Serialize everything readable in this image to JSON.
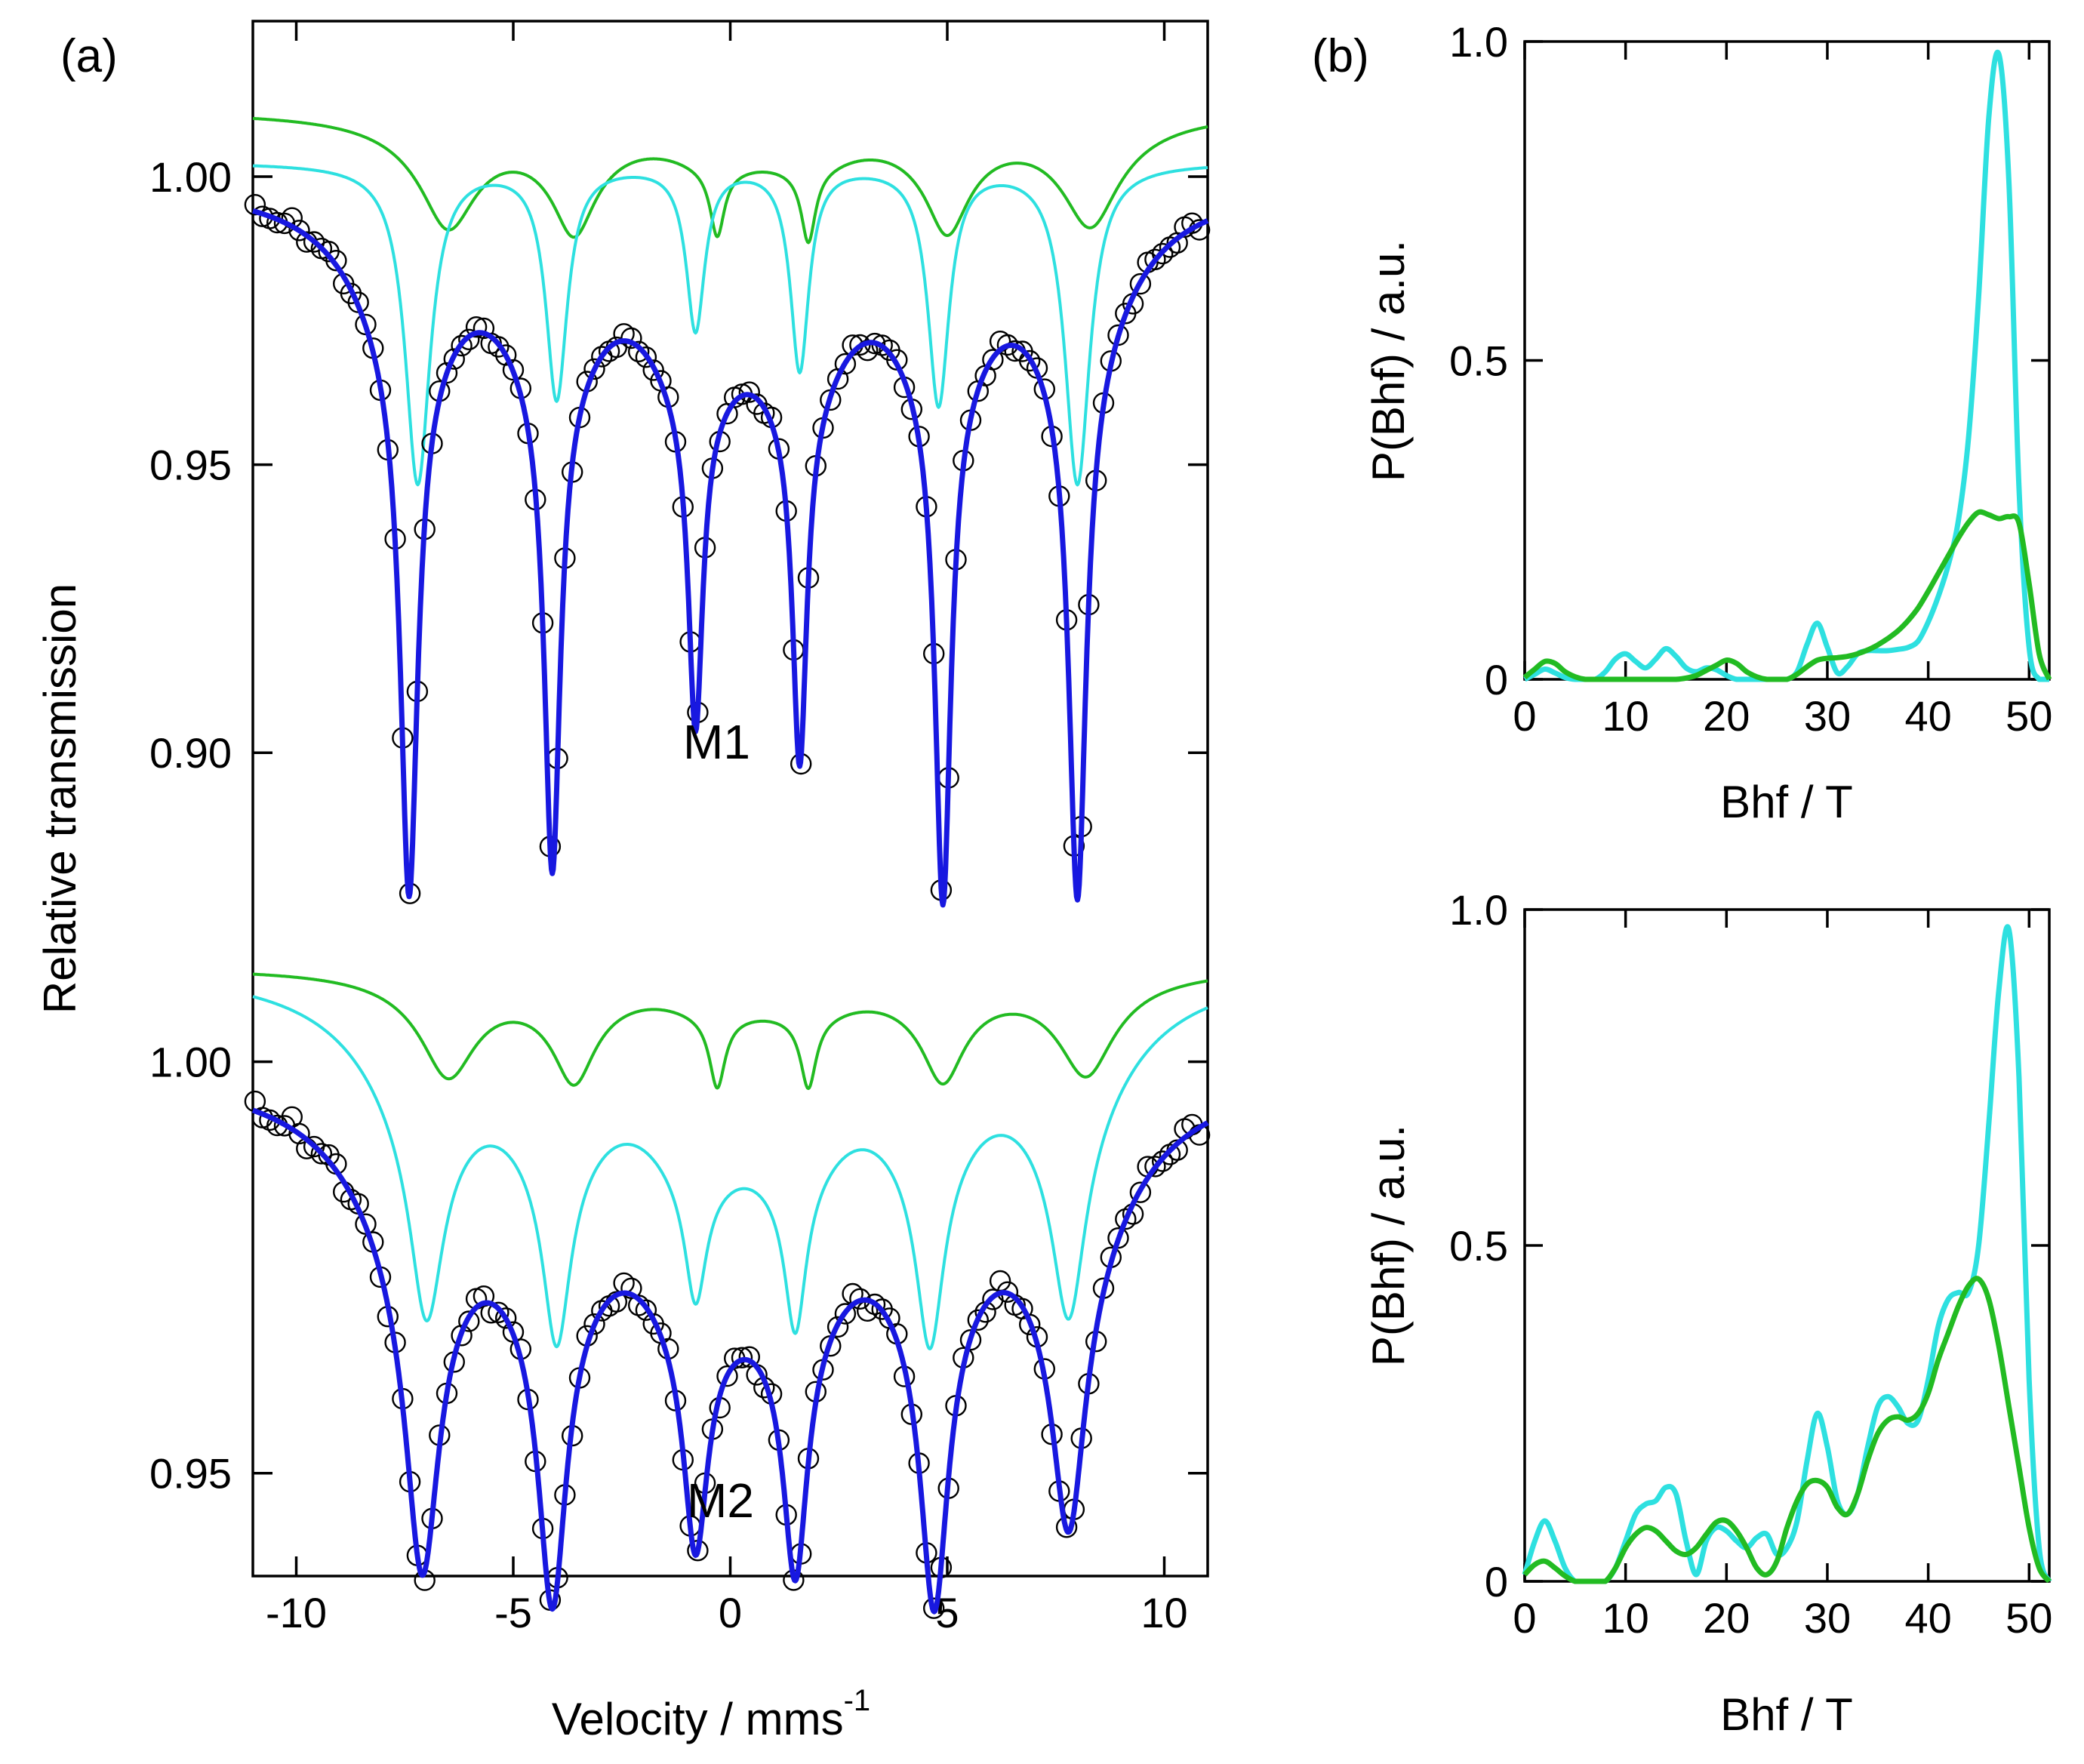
{
  "figure": {
    "panel_a_label": "(a)",
    "panel_b_label": "(b)"
  },
  "colors": {
    "data_markers": "#000000",
    "total_fit": "#1818e0",
    "component_cyan": "#2ee0e0",
    "component_green": "#22bb22",
    "axes": "#000000"
  },
  "chart_data": [
    {
      "id": "mossbauer",
      "type": "scatter",
      "title": "",
      "xlabel": "Velocity / mms",
      "xlabel_superscript": "-1",
      "ylabel": "Relative transmission",
      "xlim": [
        -11,
        11
      ],
      "xticks": [
        -10,
        -5,
        0,
        5,
        10
      ],
      "xtick_labels": [
        "-10",
        "-5",
        "0",
        "5",
        "10"
      ],
      "legend": "none",
      "grid": false,
      "panels": [
        {
          "sample": "M1",
          "ylim": [
            0.8885,
            1.027
          ],
          "yticks": [
            1.0,
            0.95,
            0.9
          ],
          "ytick_labels": [
            "1.00",
            "0.95",
            "0.90"
          ],
          "series": [
            {
              "name": "measured",
              "style": "open-circle",
              "baseline": 0.9995,
              "lines": [
                {
                  "pos": -7.4,
                  "depth": 0.0925,
                  "width": 0.24
                },
                {
                  "pos": -4.1,
                  "depth": 0.0845,
                  "width": 0.22
                },
                {
                  "pos": -0.8,
                  "depth": 0.0565,
                  "width": 0.2
                },
                {
                  "pos": 1.6,
                  "depth": 0.0625,
                  "width": 0.2
                },
                {
                  "pos": 4.9,
                  "depth": 0.0895,
                  "width": 0.22
                },
                {
                  "pos": 8.0,
                  "depth": 0.0925,
                  "width": 0.24
                }
              ],
              "broad_depth": 0.026,
              "broad_width": 1.3
            },
            {
              "name": "fit",
              "style": "line",
              "baseline": 0.9995,
              "lines": [
                {
                  "pos": -7.4,
                  "depth": 0.0925,
                  "width": 0.24
                },
                {
                  "pos": -4.1,
                  "depth": 0.0845,
                  "width": 0.22
                },
                {
                  "pos": -0.8,
                  "depth": 0.0565,
                  "width": 0.2
                },
                {
                  "pos": 1.6,
                  "depth": 0.0625,
                  "width": 0.2
                },
                {
                  "pos": 4.9,
                  "depth": 0.0895,
                  "width": 0.22
                },
                {
                  "pos": 8.0,
                  "depth": 0.0925,
                  "width": 0.24
                }
              ],
              "broad_depth": 0.026,
              "broad_width": 1.3
            },
            {
              "name": "component-1",
              "style": "line",
              "baseline": 1.0025,
              "lines": [
                {
                  "pos": -7.2,
                  "depth": 0.0555,
                  "width": 0.35
                },
                {
                  "pos": -4.0,
                  "depth": 0.0405,
                  "width": 0.3
                },
                {
                  "pos": -0.8,
                  "depth": 0.0285,
                  "width": 0.26
                },
                {
                  "pos": 1.6,
                  "depth": 0.0355,
                  "width": 0.26
                },
                {
                  "pos": 4.8,
                  "depth": 0.0415,
                  "width": 0.3
                },
                {
                  "pos": 8.0,
                  "depth": 0.0555,
                  "width": 0.35
                }
              ],
              "broad_depth": 0.0,
              "broad_width": 1.3
            },
            {
              "name": "component-2",
              "style": "line",
              "baseline": 1.0115,
              "lines": [
                {
                  "pos": -6.5,
                  "depth": 0.0125,
                  "width": 0.7
                },
                {
                  "pos": -3.6,
                  "depth": 0.0125,
                  "width": 0.55
                },
                {
                  "pos": -0.3,
                  "depth": 0.0115,
                  "width": 0.2
                },
                {
                  "pos": 1.8,
                  "depth": 0.0125,
                  "width": 0.2
                },
                {
                  "pos": 5.0,
                  "depth": 0.0125,
                  "width": 0.55
                },
                {
                  "pos": 8.3,
                  "depth": 0.0125,
                  "width": 0.7
                }
              ],
              "broad_depth": 0.006,
              "broad_width": 1.4
            }
          ]
        },
        {
          "sample": "M2",
          "ylim": [
            0.9375,
            1.0295
          ],
          "yticks": [
            1.0,
            0.95
          ],
          "ytick_labels": [
            "1.00",
            "0.95"
          ],
          "series": [
            {
              "name": "measured",
              "style": "open-circle",
              "baseline": 0.9995,
              "lines": [
                {
                  "pos": -7.1,
                  "depth": 0.036,
                  "width": 0.45
                },
                {
                  "pos": -4.1,
                  "depth": 0.036,
                  "width": 0.38
                },
                {
                  "pos": -0.8,
                  "depth": 0.0264,
                  "width": 0.33
                },
                {
                  "pos": 1.5,
                  "depth": 0.0294,
                  "width": 0.33
                },
                {
                  "pos": 4.7,
                  "depth": 0.0364,
                  "width": 0.38
                },
                {
                  "pos": 7.8,
                  "depth": 0.031,
                  "width": 0.45
                }
              ],
              "broad_depth": 0.0187,
              "broad_width": 1.6
            },
            {
              "name": "fit",
              "style": "line",
              "baseline": 0.9995,
              "lines": [
                {
                  "pos": -7.1,
                  "depth": 0.036,
                  "width": 0.45
                },
                {
                  "pos": -4.1,
                  "depth": 0.036,
                  "width": 0.38
                },
                {
                  "pos": -0.8,
                  "depth": 0.0264,
                  "width": 0.33
                },
                {
                  "pos": 1.5,
                  "depth": 0.0294,
                  "width": 0.33
                },
                {
                  "pos": 4.7,
                  "depth": 0.0364,
                  "width": 0.38
                },
                {
                  "pos": 7.8,
                  "depth": 0.031,
                  "width": 0.45
                }
              ],
              "broad_depth": 0.0187,
              "broad_width": 1.6
            },
            {
              "name": "component-1",
              "style": "line",
              "baseline": 1.012,
              "lines": [
                {
                  "pos": -7.0,
                  "depth": 0.0228,
                  "width": 0.45
                },
                {
                  "pos": -4.0,
                  "depth": 0.0226,
                  "width": 0.38
                },
                {
                  "pos": -0.8,
                  "depth": 0.015,
                  "width": 0.3
                },
                {
                  "pos": 1.5,
                  "depth": 0.0185,
                  "width": 0.3
                },
                {
                  "pos": 4.6,
                  "depth": 0.023,
                  "width": 0.38
                },
                {
                  "pos": 7.8,
                  "depth": 0.023,
                  "width": 0.45
                }
              ],
              "broad_depth": 0.015,
              "broad_width": 1.6
            },
            {
              "name": "component-2",
              "style": "line",
              "baseline": 1.0115,
              "lines": [
                {
                  "pos": -6.5,
                  "depth": 0.0087,
                  "width": 0.7
                },
                {
                  "pos": -3.6,
                  "depth": 0.0087,
                  "width": 0.55
                },
                {
                  "pos": -0.3,
                  "depth": 0.0085,
                  "width": 0.22
                },
                {
                  "pos": 1.8,
                  "depth": 0.0085,
                  "width": 0.22
                },
                {
                  "pos": 4.9,
                  "depth": 0.0087,
                  "width": 0.55
                },
                {
                  "pos": 8.2,
                  "depth": 0.0087,
                  "width": 0.7
                }
              ],
              "broad_depth": 0.0035,
              "broad_width": 1.4
            }
          ]
        }
      ]
    },
    {
      "id": "bhf-distribution-m1",
      "type": "line",
      "title": "",
      "xlabel": "Bhf / T",
      "ylabel": "P(Bhf) / a.u.",
      "xlim": [
        0,
        52
      ],
      "ylim": [
        0,
        1.0
      ],
      "xticks": [
        0,
        10,
        20,
        30,
        40,
        50
      ],
      "xtick_labels": [
        "0",
        "10",
        "20",
        "30",
        "40",
        "50"
      ],
      "yticks": [
        0,
        0.5,
        1.0
      ],
      "ytick_labels": [
        "0",
        "0.5",
        "1.0"
      ],
      "legend": "none",
      "grid": false,
      "series": [
        {
          "name": "component-1",
          "x": [
            0,
            1,
            2,
            3,
            4,
            5,
            6,
            7,
            8,
            9,
            10,
            11,
            12,
            13,
            14,
            15,
            16,
            17,
            18,
            19,
            20,
            21,
            22,
            23,
            24,
            25,
            26,
            27,
            28,
            29,
            30,
            31,
            32,
            33,
            34,
            35,
            36,
            37,
            38,
            39,
            40,
            41,
            42,
            43,
            44,
            45,
            46,
            47,
            48,
            49,
            50,
            51,
            52
          ],
          "y": [
            0,
            0.008,
            0.016,
            0.01,
            0.003,
            0,
            0,
            0,
            0.012,
            0.032,
            0.04,
            0.028,
            0.018,
            0.032,
            0.048,
            0.036,
            0.018,
            0.012,
            0.018,
            0.015,
            0.006,
            0,
            0,
            0,
            0,
            0,
            0,
            0.012,
            0.055,
            0.088,
            0.05,
            0.01,
            0.02,
            0.04,
            0.045,
            0.045,
            0.045,
            0.047,
            0.05,
            0.06,
            0.09,
            0.13,
            0.18,
            0.25,
            0.38,
            0.6,
            0.88,
            0.98,
            0.78,
            0.3,
            0.05,
            0,
            0
          ]
        },
        {
          "name": "component-2",
          "x": [
            0,
            1,
            2,
            3,
            4,
            5,
            6,
            7,
            8,
            9,
            10,
            11,
            12,
            13,
            14,
            15,
            16,
            17,
            18,
            19,
            20,
            21,
            22,
            23,
            24,
            25,
            26,
            27,
            28,
            29,
            30,
            31,
            32,
            33,
            34,
            35,
            36,
            37,
            38,
            39,
            40,
            41,
            42,
            43,
            44,
            45,
            46,
            47,
            48,
            49,
            50,
            51,
            52
          ],
          "y": [
            0.003,
            0.016,
            0.028,
            0.025,
            0.012,
            0.004,
            0,
            0,
            0,
            0,
            0,
            0,
            0,
            0,
            0,
            0,
            0.002,
            0.006,
            0.014,
            0.022,
            0.03,
            0.025,
            0.012,
            0.004,
            0,
            0,
            0,
            0.008,
            0.02,
            0.03,
            0.033,
            0.034,
            0.036,
            0.04,
            0.046,
            0.054,
            0.064,
            0.076,
            0.092,
            0.112,
            0.138,
            0.166,
            0.194,
            0.222,
            0.246,
            0.262,
            0.258,
            0.252,
            0.255,
            0.245,
            0.15,
            0.04,
            0
          ]
        }
      ]
    },
    {
      "id": "bhf-distribution-m2",
      "type": "line",
      "title": "",
      "xlabel": "Bhf / T",
      "ylabel": "P(Bhf) / a.u.",
      "xlim": [
        0,
        52
      ],
      "ylim": [
        0,
        1.0
      ],
      "xticks": [
        0,
        10,
        20,
        30,
        40,
        50
      ],
      "xtick_labels": [
        "0",
        "10",
        "20",
        "30",
        "40",
        "50"
      ],
      "yticks": [
        0,
        0.5,
        1.0
      ],
      "ytick_labels": [
        "0",
        "0.5",
        "1.0"
      ],
      "legend": "none",
      "grid": false,
      "series": [
        {
          "name": "component-1",
          "x": [
            0,
            1,
            2,
            3,
            4,
            5,
            6,
            7,
            8,
            9,
            10,
            11,
            12,
            13,
            14,
            15,
            16,
            17,
            18,
            19,
            20,
            21,
            22,
            23,
            24,
            25,
            26,
            27,
            28,
            29,
            30,
            31,
            32,
            33,
            34,
            35,
            36,
            37,
            38,
            39,
            40,
            41,
            42,
            43,
            44,
            45,
            46,
            47,
            48,
            49,
            50,
            51,
            52
          ],
          "y": [
            0.01,
            0.06,
            0.09,
            0.06,
            0.02,
            0,
            0,
            0,
            0,
            0.02,
            0.06,
            0.1,
            0.115,
            0.12,
            0.14,
            0.13,
            0.06,
            0.01,
            0.06,
            0.08,
            0.075,
            0.06,
            0.05,
            0.065,
            0.07,
            0.04,
            0.05,
            0.09,
            0.18,
            0.25,
            0.2,
            0.12,
            0.1,
            0.13,
            0.2,
            0.26,
            0.275,
            0.26,
            0.235,
            0.24,
            0.3,
            0.38,
            0.42,
            0.43,
            0.43,
            0.5,
            0.68,
            0.88,
            0.97,
            0.75,
            0.3,
            0.05,
            0
          ]
        },
        {
          "name": "component-2",
          "x": [
            0,
            1,
            2,
            3,
            4,
            5,
            6,
            7,
            8,
            9,
            10,
            11,
            12,
            13,
            14,
            15,
            16,
            17,
            18,
            19,
            20,
            21,
            22,
            23,
            24,
            25,
            26,
            27,
            28,
            29,
            30,
            31,
            32,
            33,
            34,
            35,
            36,
            37,
            38,
            39,
            40,
            41,
            42,
            43,
            44,
            45,
            46,
            47,
            48,
            49,
            50,
            51,
            52
          ],
          "y": [
            0.01,
            0.025,
            0.03,
            0.02,
            0.008,
            0,
            0,
            0,
            0,
            0.02,
            0.05,
            0.07,
            0.08,
            0.075,
            0.06,
            0.045,
            0.04,
            0.05,
            0.07,
            0.088,
            0.09,
            0.075,
            0.05,
            0.02,
            0.01,
            0.03,
            0.08,
            0.12,
            0.145,
            0.15,
            0.14,
            0.11,
            0.1,
            0.13,
            0.18,
            0.22,
            0.24,
            0.245,
            0.24,
            0.25,
            0.28,
            0.33,
            0.37,
            0.41,
            0.44,
            0.45,
            0.42,
            0.35,
            0.26,
            0.17,
            0.08,
            0.02,
            0
          ]
        }
      ]
    }
  ]
}
